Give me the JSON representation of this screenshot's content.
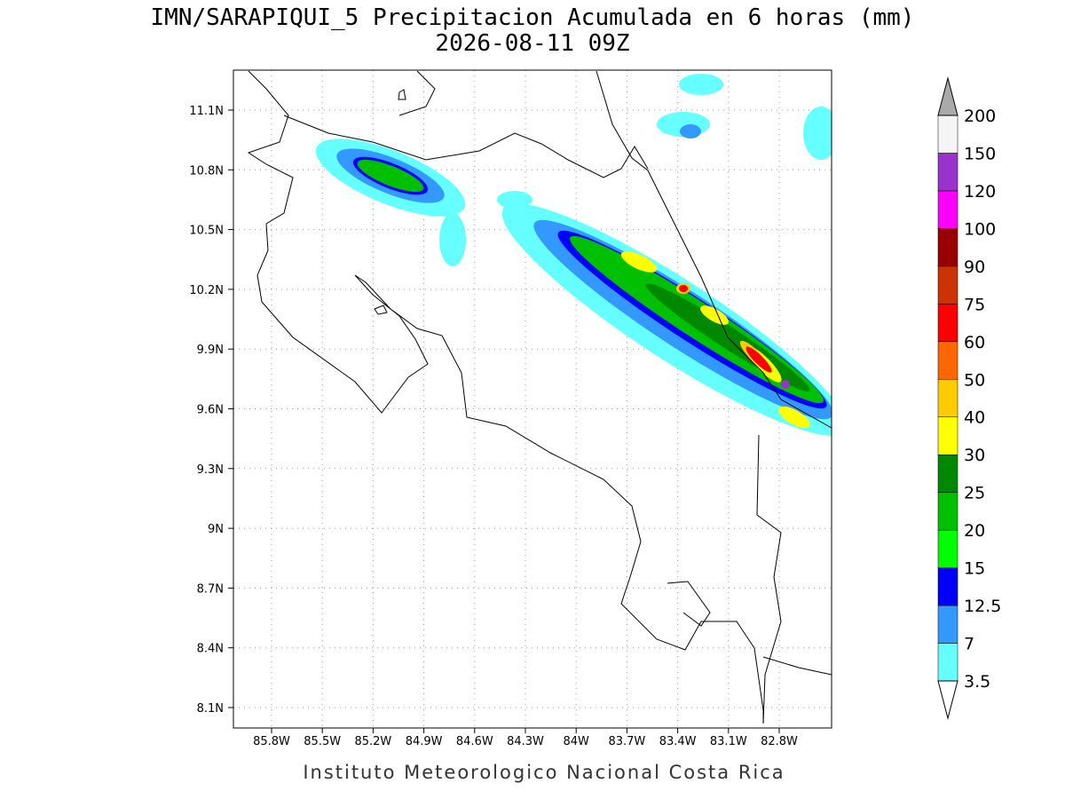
{
  "header": {
    "title": "IMN/SARAPIQUI_5 Precipitacion Acumulada en 6 horas (mm)",
    "subtitle": "2026-08-11 09Z"
  },
  "map": {
    "lat_labels": [
      "11.1N",
      "10.8N",
      "10.5N",
      "10.2N",
      "9.9N",
      "9.6N",
      "9.3N",
      "9N",
      "8.7N",
      "8.4N",
      "8.1N"
    ],
    "lon_labels": [
      "85.8W",
      "85.5W",
      "85.2W",
      "84.9W",
      "84.6W",
      "84.3W",
      "84W",
      "83.7W",
      "83.4W",
      "83.1W",
      "82.8W"
    ]
  },
  "colorbar": {
    "levels": [
      3.5,
      7,
      12.5,
      15,
      20,
      25,
      30,
      40,
      50,
      60,
      75,
      90,
      100,
      120,
      150,
      200
    ],
    "colors": [
      "#66ffff",
      "#3399ff",
      "#0000ff",
      "#00ff00",
      "#00c000",
      "#008800",
      "#ffff00",
      "#ffcc00",
      "#ff6600",
      "#ff0000",
      "#cc3300",
      "#990000",
      "#ff00ff",
      "#9933cc",
      "#f5f5f5"
    ],
    "over_color": "#aaaaaa",
    "under_color": "#ffffff"
  },
  "footer": {
    "text": "Instituto Meteorologico Nacional Costa Rica"
  }
}
